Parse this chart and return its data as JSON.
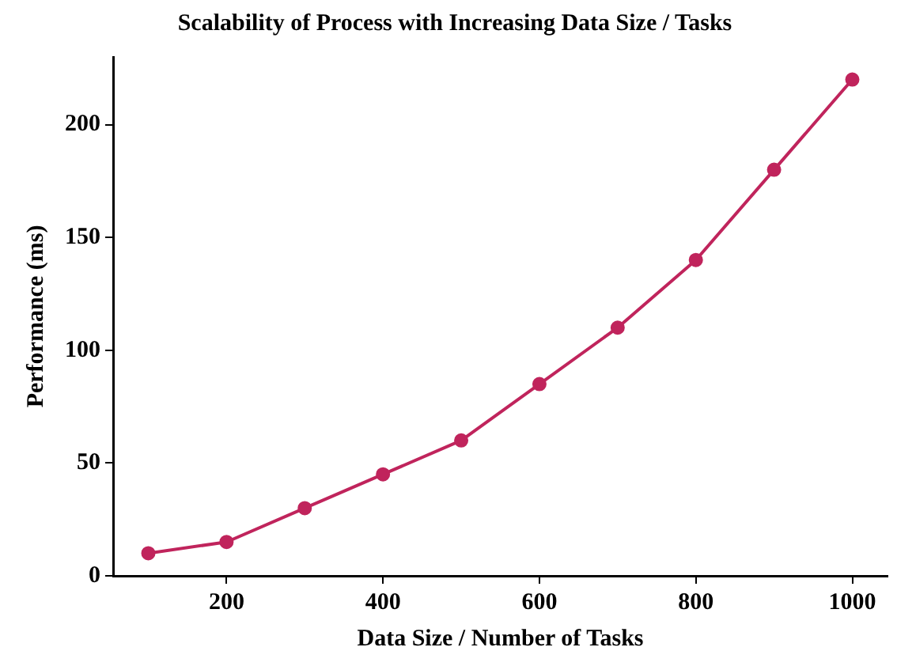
{
  "chart_data": {
    "type": "line",
    "title": "Scalability of Process with Increasing Data Size / Tasks",
    "xlabel": "Data Size / Number of Tasks",
    "ylabel": "Performance (ms)",
    "x": [
      100,
      200,
      300,
      400,
      500,
      600,
      700,
      800,
      900,
      1000
    ],
    "series": [
      {
        "color": "#c0245c",
        "values": [
          10,
          15,
          30,
          45,
          60,
          85,
          110,
          140,
          180,
          220
        ]
      }
    ],
    "xlim": [
      55,
      1045
    ],
    "xticks": [
      200,
      400,
      600,
      800,
      1000
    ],
    "ylim": [
      0,
      230
    ],
    "yticks": [
      0,
      50,
      100,
      150,
      200
    ],
    "marker": "circle",
    "line_style": "solid",
    "grid": false,
    "legend": false
  }
}
